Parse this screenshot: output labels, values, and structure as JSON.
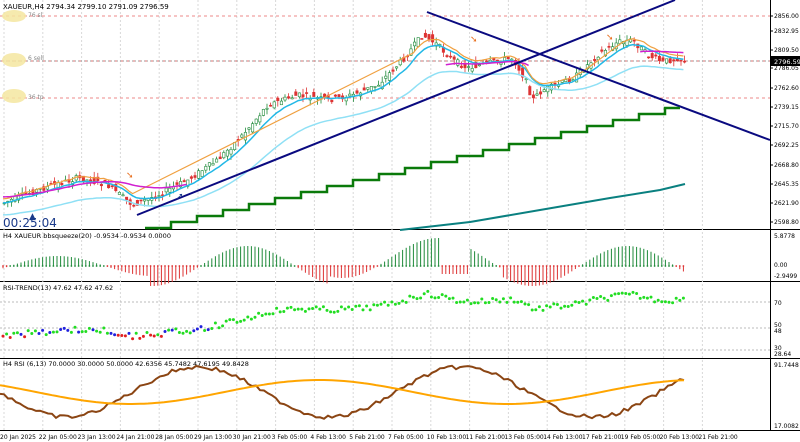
{
  "window": {
    "main_header": "XAUEUR,H4  2794.34 2799.10 2791.09 2796.59",
    "timer": "00:25:04",
    "line_labels": {
      "sl": "76 sl",
      "sell": "6 sell",
      "tp": "36 tp"
    }
  },
  "panes": {
    "main": {
      "price_labels": [
        "2856.00",
        "2832.95",
        "2809.50",
        "2786.05",
        "2762.60",
        "2739.15",
        "2715.70",
        "2692.25",
        "2668.80",
        "2645.35",
        "2621.90",
        "2598.80"
      ],
      "current_price": "2796.59"
    },
    "bbsqueeze": {
      "header": "H4 XAUEUR bbsqueeze(20) -0.9534 -0.9534 0.0000",
      "price_labels": [
        "5.8778",
        "0.00",
        "-2.9499"
      ]
    },
    "rsi_trend": {
      "header": "RSI-TREND(13) 47.62 47.62 47.62",
      "price_labels": [
        "70",
        "50",
        "48",
        "30",
        "28.64"
      ]
    },
    "h4_rsi": {
      "header": "H4 RSI  (6,13) 70.0000 30.0000 50.0000 42.6356 45.7482 47.6195 49.8428",
      "price_labels": [
        "91.7448",
        "17.0082"
      ]
    }
  },
  "time_axis": [
    "20 Jan 2025",
    "22 Jan 05:00",
    "23 Jan 13:00",
    "24 Jan 21:00",
    "28 Jan 05:00",
    "29 Jan 13:00",
    "30 Jan 21:00",
    "3 Feb 05:00",
    "4 Feb 13:00",
    "5 Feb 21:00",
    "7 Feb 05:00",
    "10 Feb 13:00",
    "11 Feb 21:00",
    "13 Feb 05:00",
    "14 Feb 13:00",
    "17 Feb 21:00",
    "19 Feb 05:00",
    "20 Feb 13:00",
    "21 Feb 21:00"
  ],
  "colors": {
    "bull": "#1f8a3a",
    "bear": "#d33",
    "ema_fast": "#22b8e6",
    "ema_slow": "#8fe0f5",
    "magenta": "#d020d0",
    "orange": "#f0a040",
    "trend": "#0a0a80",
    "step": "#0a7a0a",
    "teal": "#0a8080",
    "rsi_brown": "#8b4513",
    "rsi_orange": "#ffa500",
    "dot_green": "#22dd22",
    "dot_red": "#e02020",
    "dot_blue": "#2020dd"
  }
}
